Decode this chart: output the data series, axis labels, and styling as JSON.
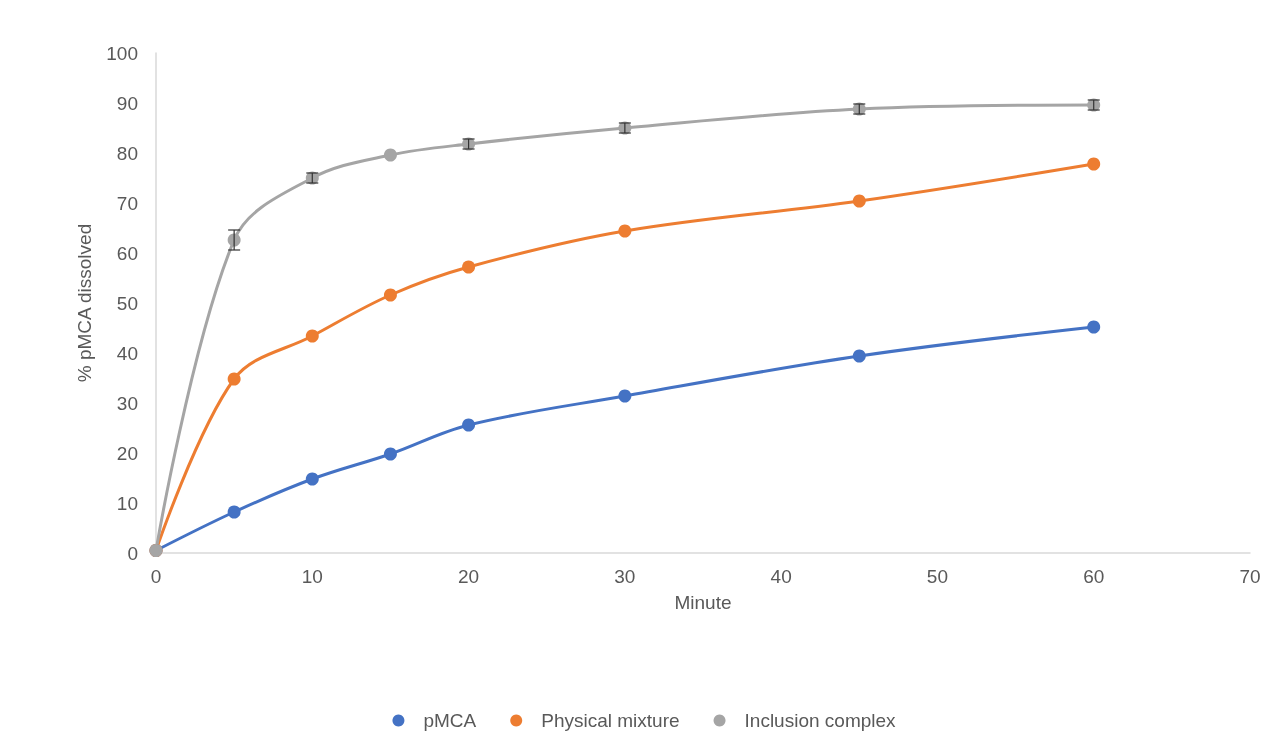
{
  "chart_data": {
    "type": "line",
    "xlabel": "Minute",
    "ylabel": "% pMCA dissolved",
    "x": [
      0,
      5,
      10,
      15,
      20,
      30,
      45,
      60
    ],
    "xlim": [
      0,
      70
    ],
    "xticks": [
      0,
      10,
      20,
      30,
      40,
      50,
      60,
      70
    ],
    "ylim": [
      0,
      100
    ],
    "yticks": [
      0,
      10,
      20,
      30,
      40,
      50,
      60,
      70,
      80,
      90,
      100
    ],
    "grid": false,
    "legend": "bottom",
    "marker": "circle",
    "line_style": "solid",
    "series": [
      {
        "name": "pMCA",
        "color": "#4472c4",
        "values": [
          0.5,
          8.2,
          14.8,
          19.8,
          25.6,
          31.4,
          39.4,
          45.2
        ]
      },
      {
        "name": "Physical mixture",
        "color": "#ed7d31",
        "values": [
          0.5,
          34.8,
          43.4,
          51.6,
          57.2,
          64.4,
          70.4,
          77.8
        ]
      },
      {
        "name": "Inclusion complex",
        "color": "#a5a5a5",
        "values": [
          0.5,
          62.6,
          75,
          79.6,
          81.8,
          85,
          88.8,
          89.6
        ],
        "errors": [
          null,
          2,
          1,
          null,
          1,
          1,
          1,
          1
        ]
      }
    ]
  }
}
